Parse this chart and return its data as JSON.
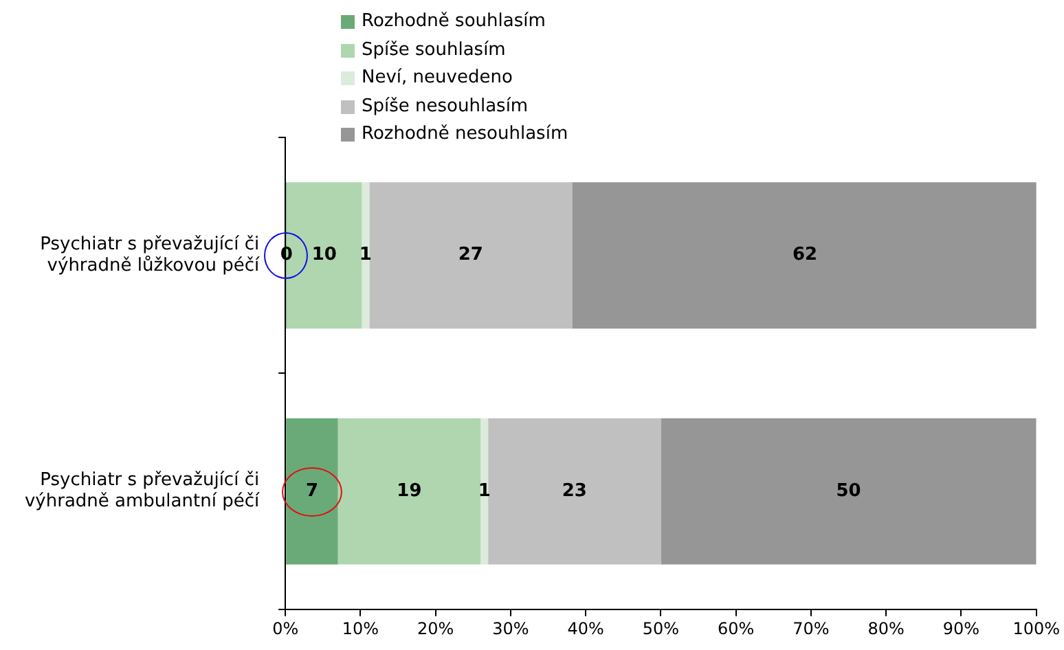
{
  "chart_data": {
    "type": "bar",
    "orientation": "horizontal",
    "stacked": true,
    "categories": [
      "Psychiatr s převažující či výhradně lůžkovou péčí",
      "Psychiatr s převažující či výhradně ambulantní péčí"
    ],
    "series": [
      {
        "name": "Rozhodně souhlasím",
        "color": "#6aaa78",
        "values": [
          0,
          7
        ],
        "value_labels": [
          "0",
          "7"
        ]
      },
      {
        "name": "Spíše souhlasím",
        "color": "#b0d6b0",
        "values": [
          10,
          19
        ],
        "value_labels": [
          "10",
          "19"
        ]
      },
      {
        "name": "Neví, neuvedeno",
        "color": "#dcebdc",
        "values": [
          1,
          1
        ],
        "value_labels": [
          "1",
          "1"
        ]
      },
      {
        "name": "Spíše nesouhlasím",
        "color": "#c0c0c0",
        "values": [
          27,
          23
        ],
        "value_labels": [
          "27",
          "23"
        ]
      },
      {
        "name": "Rozhodně nesouhlasím",
        "color": "#969696",
        "values": [
          62,
          50
        ],
        "value_labels": [
          "62",
          "50"
        ]
      }
    ],
    "xlim": [
      0,
      100
    ],
    "xticks": [
      {
        "value": 0,
        "label": "0%"
      },
      {
        "value": 10,
        "label": "10%"
      },
      {
        "value": 20,
        "label": "20%"
      },
      {
        "value": 30,
        "label": "30%"
      },
      {
        "value": 40,
        "label": "40%"
      },
      {
        "value": 50,
        "label": "50%"
      },
      {
        "value": 60,
        "label": "60%"
      },
      {
        "value": 70,
        "label": "70%"
      },
      {
        "value": 80,
        "label": "80%"
      },
      {
        "value": 90,
        "label": "90%"
      },
      {
        "value": 100,
        "label": "100%"
      }
    ],
    "legend": "top",
    "grid": false
  }
}
